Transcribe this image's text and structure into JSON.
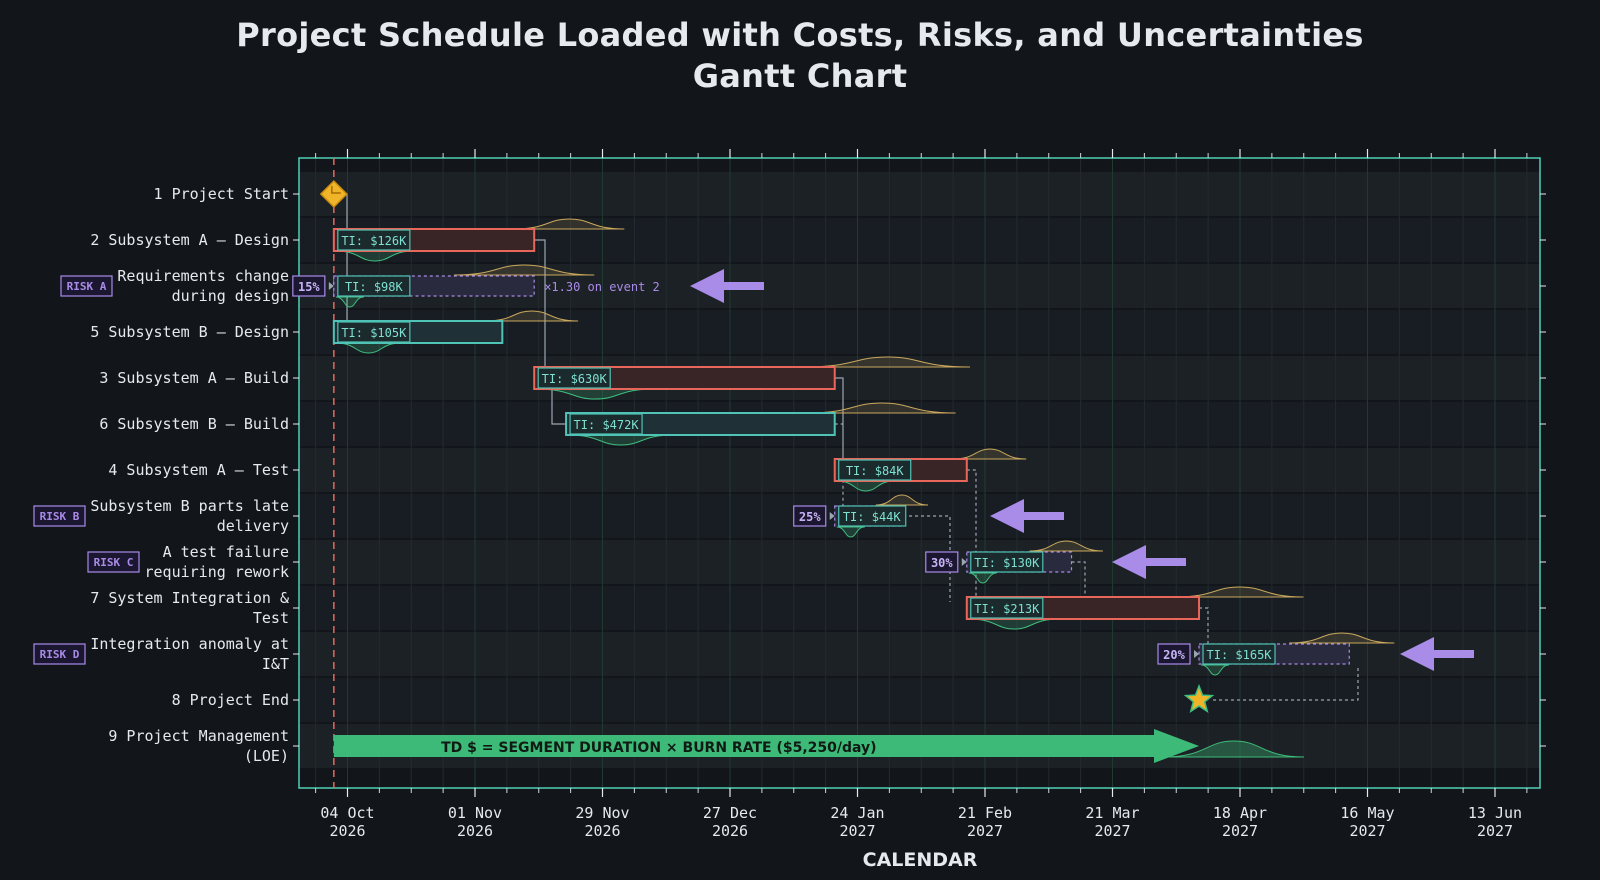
{
  "title_line1": "Project Schedule Loaded with Costs, Risks, and Uncertainties",
  "title_line2": "Gantt Chart",
  "chart_data": {
    "type": "gantt",
    "xlabel": "CALENDAR",
    "x_ticks": [
      {
        "date": "2026-10-04",
        "label": [
          "04 Oct",
          "2026"
        ]
      },
      {
        "date": "2026-11-01",
        "label": [
          "01 Nov",
          "2026"
        ]
      },
      {
        "date": "2026-11-29",
        "label": [
          "29 Nov",
          "2026"
        ]
      },
      {
        "date": "2026-12-27",
        "label": [
          "27 Dec",
          "2026"
        ]
      },
      {
        "date": "2027-01-24",
        "label": [
          "24 Jan",
          "2027"
        ]
      },
      {
        "date": "2027-02-21",
        "label": [
          "21 Feb",
          "2027"
        ]
      },
      {
        "date": "2027-03-21",
        "label": [
          "21 Mar",
          "2027"
        ]
      },
      {
        "date": "2027-04-18",
        "label": [
          "18 Apr",
          "2027"
        ]
      },
      {
        "date": "2027-05-16",
        "label": [
          "16 May",
          "2027"
        ]
      },
      {
        "date": "2027-06-13",
        "label": [
          "13 Jun",
          "2027"
        ]
      }
    ],
    "x_range": [
      "2026-09-24",
      "2027-06-20"
    ],
    "project_start_date": "2026-10-01",
    "rows": [
      {
        "label": [
          "1  Project Start"
        ],
        "kind": "milestone",
        "date": "2026-10-01",
        "shape": "diamond"
      },
      {
        "label": [
          "2  Subsystem A – Design"
        ],
        "kind": "task",
        "critical": true,
        "start": "2026-10-01",
        "end": "2026-11-14",
        "ti": "TI: $126K"
      },
      {
        "label": [
          "Requirements change",
          "during design"
        ],
        "badge": "RISK A",
        "kind": "risk",
        "prob": "15%",
        "start": "2026-10-01",
        "end": "2026-11-14",
        "ti": "TI: $98K",
        "note": "×1.30 on event 2"
      },
      {
        "label": [
          "5  Subsystem B – Design"
        ],
        "kind": "task",
        "critical": false,
        "start": "2026-10-01",
        "end": "2026-11-07",
        "ti": "TI: $105K"
      },
      {
        "label": [
          "3  Subsystem A – Build"
        ],
        "kind": "task",
        "critical": true,
        "start": "2026-11-14",
        "end": "2027-01-19",
        "ti": "TI: $630K"
      },
      {
        "label": [
          "6  Subsystem B – Build"
        ],
        "kind": "task",
        "critical": false,
        "start": "2026-11-21",
        "end": "2027-01-19",
        "ti": "TI: $472K"
      },
      {
        "label": [
          "4  Subsystem A – Test"
        ],
        "kind": "task",
        "critical": true,
        "start": "2027-01-19",
        "end": "2027-02-17",
        "ti": "TI: $84K"
      },
      {
        "label": [
          "Subsystem B parts late",
          "delivery"
        ],
        "badge": "RISK B",
        "kind": "risk",
        "prob": "25%",
        "start": "2027-01-19",
        "end": "2027-02-03",
        "ti": "TI: $44K"
      },
      {
        "label": [
          "A test failure",
          "requiring rework"
        ],
        "badge": "RISK C",
        "kind": "risk",
        "prob": "30%",
        "start": "2027-02-17",
        "end": "2027-03-12",
        "ti": "TI: $130K"
      },
      {
        "label": [
          "7  System Integration &",
          "Test"
        ],
        "kind": "task",
        "critical": true,
        "start": "2027-02-17",
        "end": "2027-04-09",
        "ti": "TI: $213K"
      },
      {
        "label": [
          "Integration anomaly at",
          "I&T"
        ],
        "badge": "RISK D",
        "kind": "risk",
        "prob": "20%",
        "start": "2027-04-09",
        "end": "2027-05-12",
        "ti": "TI: $165K"
      },
      {
        "label": [
          "8  Project End"
        ],
        "kind": "milestone",
        "date": "2027-04-09",
        "shape": "star"
      },
      {
        "label": [
          "9  Project Management",
          "(LOE)"
        ],
        "kind": "loe",
        "start": "2026-10-01",
        "end": "2027-04-09",
        "text": "TD $  =  SEGMENT DURATION  ×  BURN RATE  ($5,250/day)"
      }
    ],
    "colors": {
      "background": "#12161b",
      "plot_border": "#4fd1b5",
      "critical": "#e8675a",
      "noncritical": "#4fc3b5",
      "risk": "#a98be8",
      "uncertainty_top": "#c9a85c",
      "uncertainty_bottom": "#3fbf7f",
      "loe": "#3dba78",
      "milestone": "#f0b429",
      "start_line": "#e8675a"
    }
  }
}
